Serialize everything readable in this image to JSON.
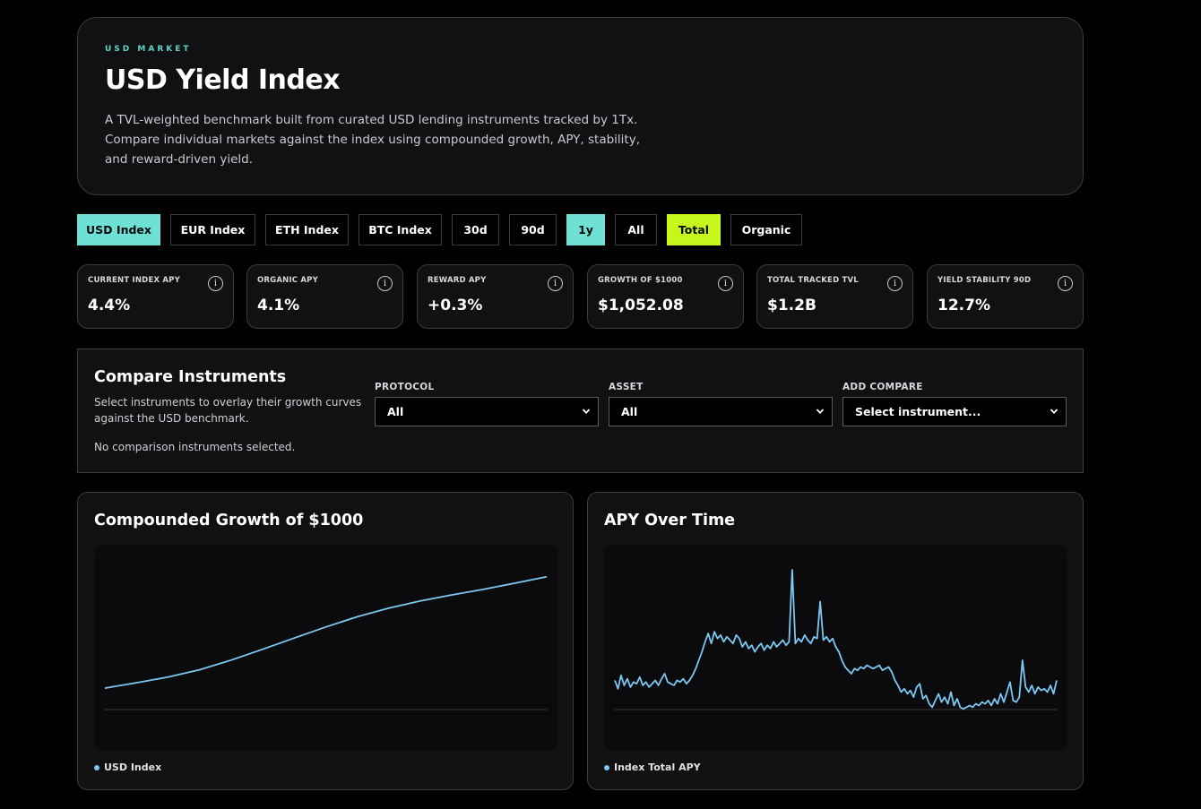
{
  "hero": {
    "eyebrow": "USD MARKET",
    "title": "USD Yield Index",
    "description": "A TVL-weighted benchmark built from curated USD lending instruments tracked by 1Tx. Compare individual markets against the index using compounded growth, APY, stability, and reward-driven yield."
  },
  "toolbar": {
    "buttons": [
      {
        "label": "USD Index",
        "state": "active"
      },
      {
        "label": "EUR Index",
        "state": "inactive"
      },
      {
        "label": "ETH Index",
        "state": "inactive"
      },
      {
        "label": "BTC Index",
        "state": "inactive"
      },
      {
        "label": "30d",
        "state": "inactive"
      },
      {
        "label": "90d",
        "state": "inactive"
      },
      {
        "label": "1y",
        "state": "active"
      },
      {
        "label": "All",
        "state": "inactive"
      },
      {
        "label": "Total",
        "state": "active-lime"
      },
      {
        "label": "Organic",
        "state": "inactive"
      }
    ]
  },
  "stats": [
    {
      "label": "CURRENT INDEX APY",
      "value": "4.4%",
      "icon": "info-icon"
    },
    {
      "label": "ORGANIC APY",
      "value": "4.1%",
      "icon": "info-icon"
    },
    {
      "label": "REWARD APY",
      "value": "+0.3%",
      "icon": "info-icon"
    },
    {
      "label": "GROWTH OF $1000",
      "value": "$1,052.08",
      "icon": "info-icon"
    },
    {
      "label": "TOTAL TRACKED TVL",
      "value": "$1.2B",
      "icon": "info-icon"
    },
    {
      "label": "YIELD STABILITY 90D",
      "value": "12.7%",
      "icon": "info-icon"
    }
  ],
  "info_glyph": "i",
  "compare": {
    "title": "Compare Instruments",
    "description": "Select instruments to overlay their growth curves against the USD benchmark.",
    "empty_text": "No comparison instruments selected.",
    "protocol": {
      "label": "PROTOCOL",
      "value": "All"
    },
    "asset": {
      "label": "ASSET",
      "value": "All"
    },
    "add_compare": {
      "label": "ADD COMPARE",
      "value": "Select instrument..."
    }
  },
  "colors": {
    "accent_teal": "#6ee0d4",
    "accent_lime": "#c6f71c",
    "series_blue": "#7cc8f2"
  },
  "chart_data": [
    {
      "type": "line",
      "title": "Compounded Growth of $1000",
      "xlabel": "",
      "ylabel": "",
      "series": [
        {
          "name": "USD Index",
          "values": [
            1000,
            1002.5,
            1005.2,
            1008.6,
            1013.1,
            1018.2,
            1023.4,
            1028.6,
            1033.4,
            1037.4,
            1040.8,
            1043.6,
            1046.2,
            1049.1,
            1052.08
          ]
        }
      ],
      "ylim": [
        990,
        1057
      ],
      "grid": false,
      "legend": "bottom-left"
    },
    {
      "type": "line",
      "title": "APY Over Time",
      "xlabel": "",
      "ylabel": "",
      "series": [
        {
          "name": "Index Total APY",
          "values": [
            4.6,
            4.1,
            4.9,
            4.3,
            4.7,
            4.2,
            4.5,
            4.4,
            4.8,
            4.3,
            4.5,
            4.2,
            4.4,
            4.6,
            4.3,
            4.7,
            5.0,
            4.5,
            4.4,
            4.3,
            4.6,
            4.5,
            4.7,
            4.4,
            4.6,
            4.9,
            5.3,
            5.8,
            6.3,
            6.9,
            7.4,
            6.8,
            7.5,
            7.1,
            7.3,
            6.9,
            7.2,
            7.0,
            6.8,
            7.3,
            7.1,
            6.6,
            6.9,
            6.5,
            6.7,
            6.3,
            6.6,
            6.8,
            6.4,
            6.7,
            6.5,
            6.9,
            6.6,
            6.8,
            7.0,
            6.7,
            6.9,
            11.2,
            6.8,
            7.1,
            6.9,
            7.3,
            7.0,
            6.8,
            7.2,
            7.1,
            9.3,
            7.0,
            7.2,
            6.9,
            7.1,
            6.6,
            6.3,
            5.8,
            5.4,
            5.2,
            5.0,
            5.3,
            5.2,
            5.4,
            5.3,
            5.5,
            5.4,
            5.3,
            5.4,
            5.5,
            5.2,
            5.3,
            5.4,
            5.1,
            4.6,
            4.3,
            3.9,
            4.1,
            3.8,
            4.0,
            3.6,
            4.2,
            4.4,
            3.5,
            3.7,
            3.2,
            3.0,
            3.4,
            3.8,
            3.3,
            3.6,
            3.2,
            3.9,
            3.1,
            3.5,
            3.0,
            2.9,
            3.0,
            3.1,
            3.0,
            3.2,
            3.1,
            3.3,
            3.2,
            3.4,
            3.1,
            3.5,
            3.2,
            3.8,
            3.3,
            3.9,
            4.5,
            3.4,
            3.3,
            3.6,
            5.8,
            4.2,
            3.9,
            4.3,
            3.8,
            4.2,
            4.0,
            4.1,
            3.9,
            4.3,
            3.8,
            4.6
          ]
        }
      ],
      "grid": false,
      "legend": "bottom-left"
    }
  ]
}
